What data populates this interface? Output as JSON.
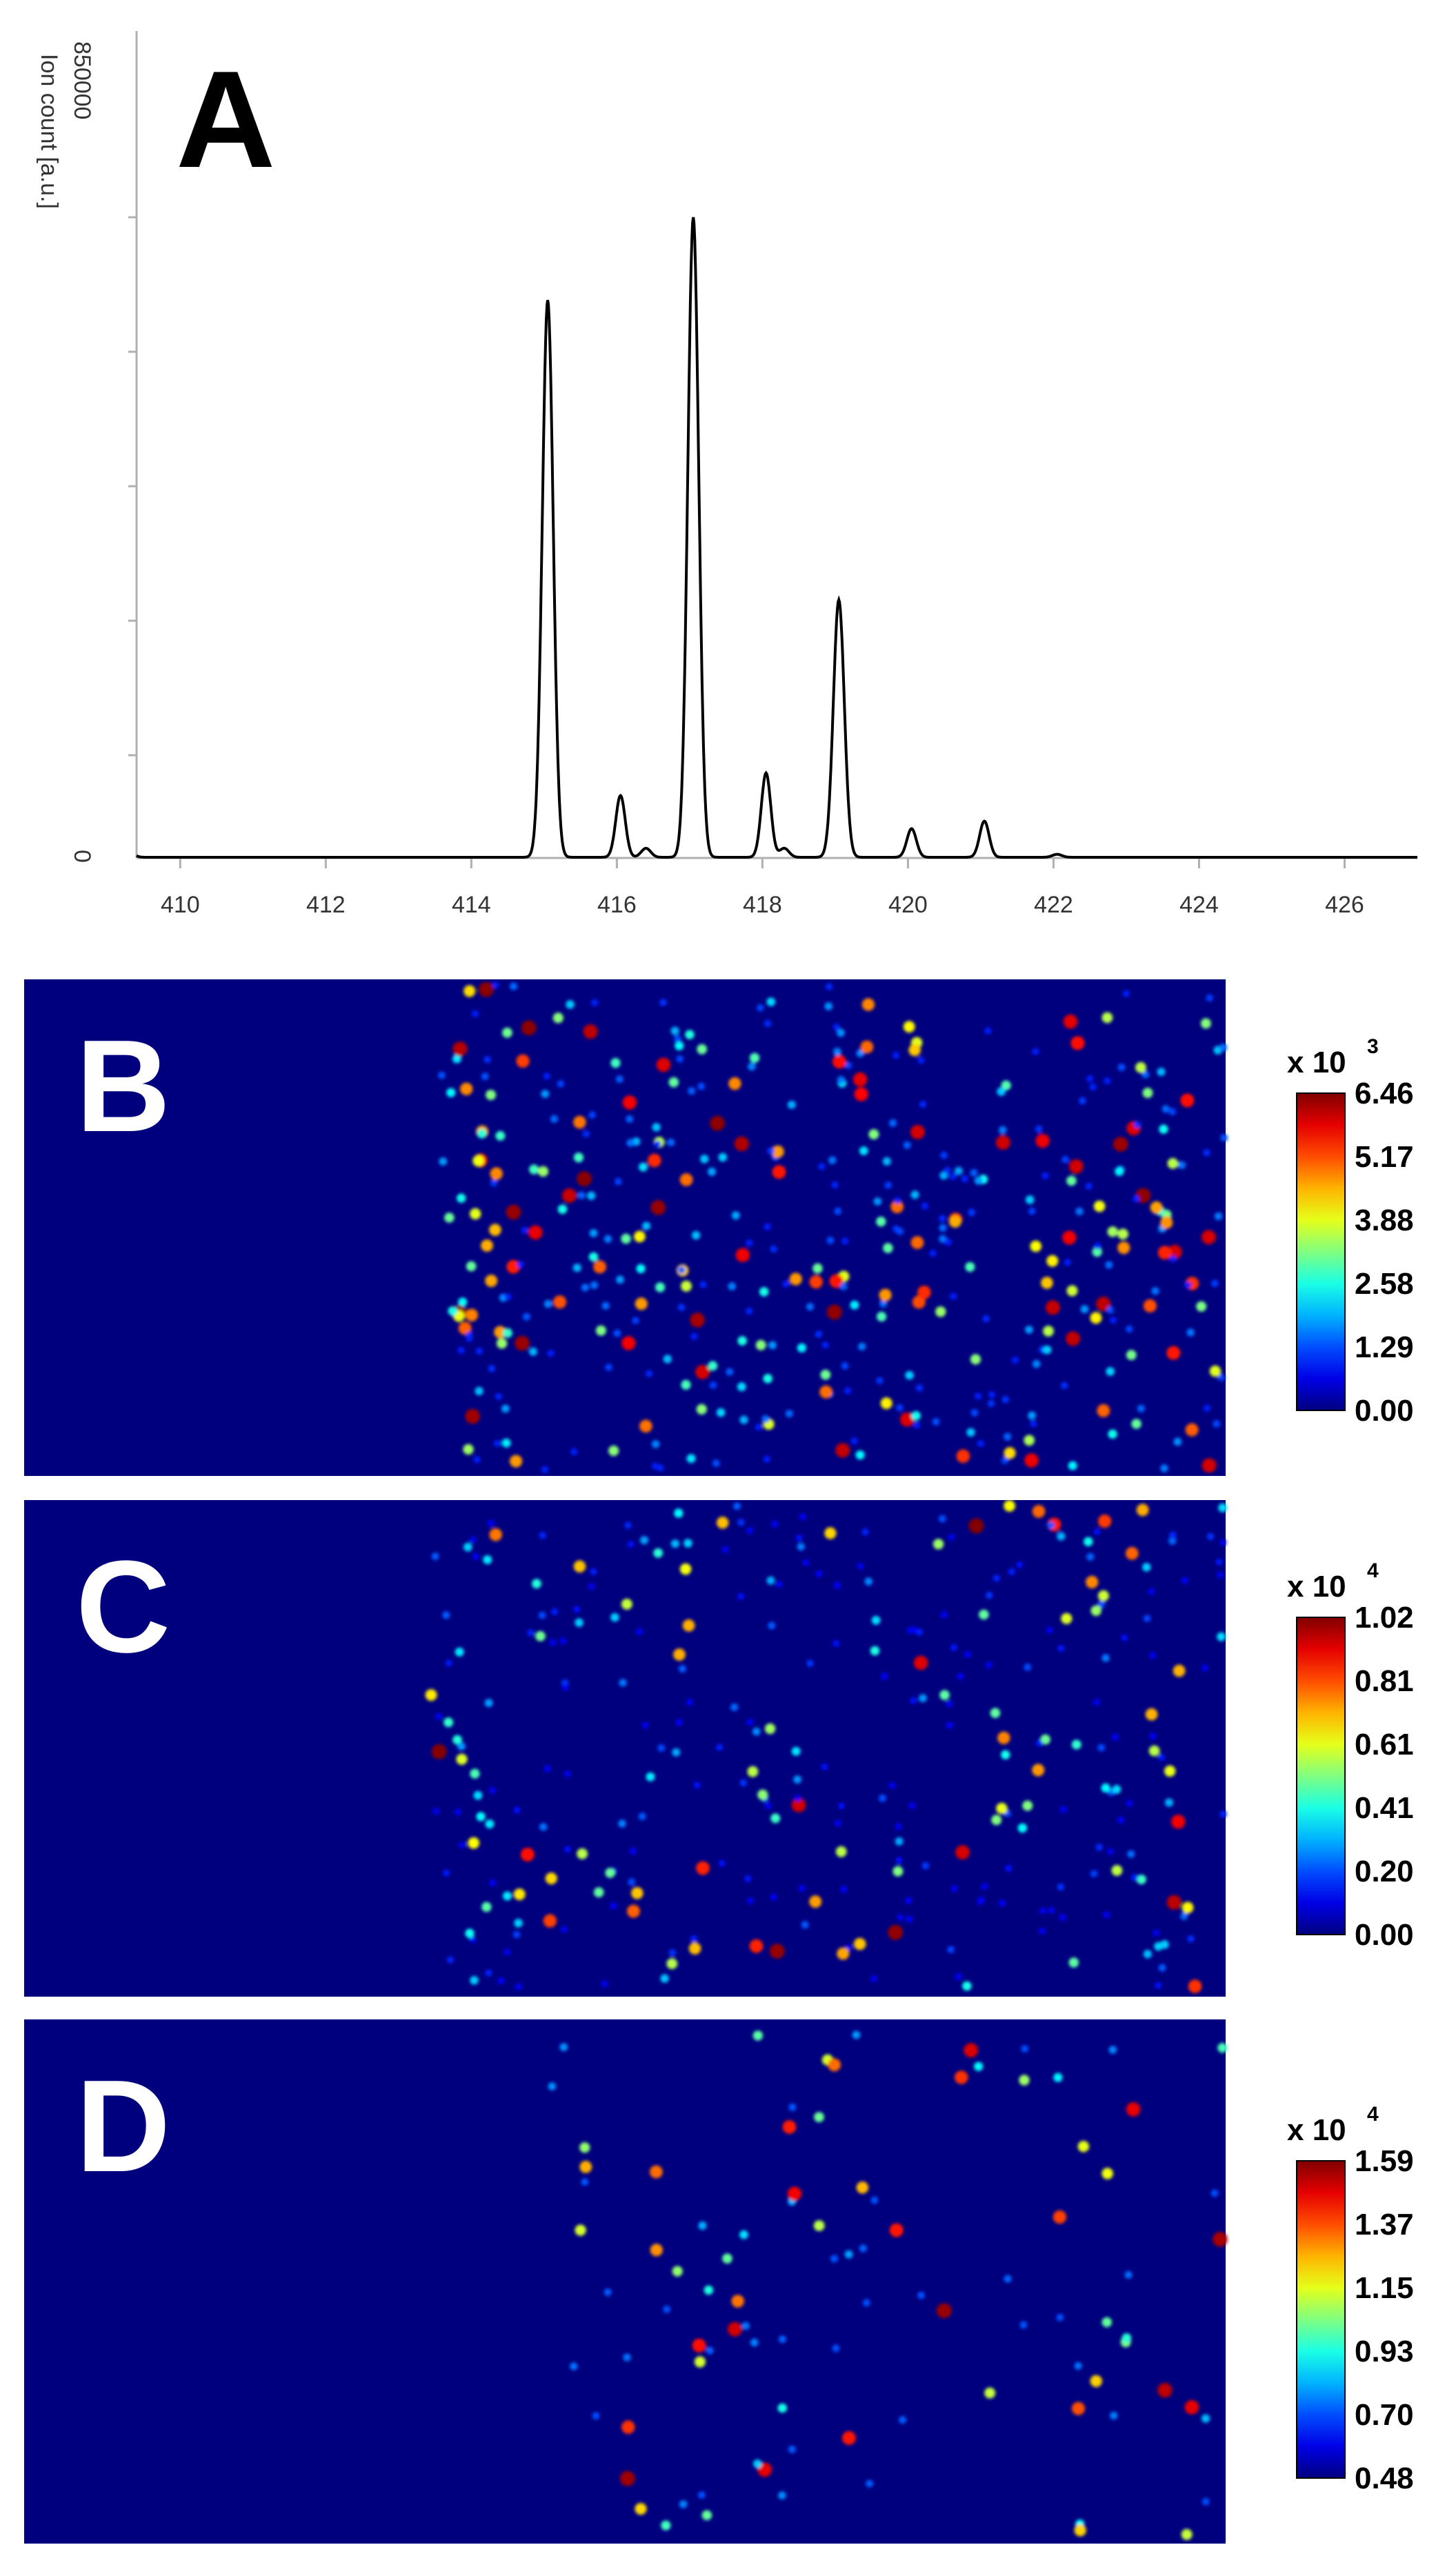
{
  "chart_data": [
    {
      "panel": "A",
      "type": "line",
      "panel_label": "A",
      "ylabel": "Ion count [a.u.]",
      "y_top_label": "850000",
      "y_zero_label": "0",
      "xlim": [
        409.4,
        427.0
      ],
      "ylim": [
        0,
        850000
      ],
      "x_ticks": [
        410,
        412,
        414,
        416,
        418,
        420,
        422,
        424,
        426
      ],
      "peaks": [
        {
          "x": 409.3,
          "y": 7000
        },
        {
          "x": 415.05,
          "y": 740000
        },
        {
          "x": 416.05,
          "y": 82000
        },
        {
          "x": 416.4,
          "y": 12000
        },
        {
          "x": 417.05,
          "y": 850000
        },
        {
          "x": 418.05,
          "y": 112000
        },
        {
          "x": 418.3,
          "y": 12000
        },
        {
          "x": 419.05,
          "y": 342000
        },
        {
          "x": 420.05,
          "y": 38000
        },
        {
          "x": 421.05,
          "y": 48000
        },
        {
          "x": 422.05,
          "y": 4000
        }
      ]
    },
    {
      "panel": "B",
      "type": "heatmap",
      "panel_label": "B",
      "colorbar_multiplier": "x 10",
      "colorbar_exponent": "3",
      "colorbar_ticks": [
        "6.46",
        "5.17",
        "3.88",
        "2.58",
        "1.29",
        "0.00"
      ],
      "scale": [
        0.0,
        6.46
      ]
    },
    {
      "panel": "C",
      "type": "heatmap",
      "panel_label": "C",
      "colorbar_multiplier": "x 10",
      "colorbar_exponent": "4",
      "colorbar_ticks": [
        "1.02",
        "0.81",
        "0.61",
        "0.41",
        "0.20",
        "0.00"
      ],
      "scale": [
        0.0,
        1.02
      ]
    },
    {
      "panel": "D",
      "type": "heatmap",
      "panel_label": "D",
      "colorbar_multiplier": "x 10",
      "colorbar_exponent": "4",
      "colorbar_ticks": [
        "1.59",
        "1.37",
        "1.15",
        "0.93",
        "0.70",
        "0.48"
      ],
      "scale": [
        0.48,
        1.59
      ]
    }
  ],
  "colors": {
    "map_background": "#00007f",
    "line": "#000000",
    "axis": "#b0b0b0"
  }
}
